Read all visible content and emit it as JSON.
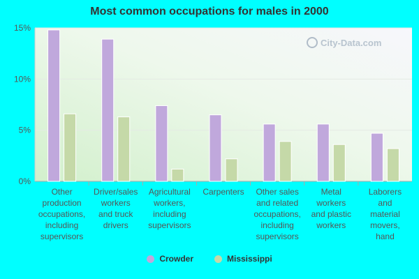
{
  "title": "Most common occupations for males in 2000",
  "watermark": "City-Data.com",
  "chart_data": {
    "type": "bar",
    "title": "Most common occupations for males in 2000",
    "categories": [
      "Other production occupations, including supervisors",
      "Driver/sales workers and truck drivers",
      "Agricultural workers, including supervisors",
      "Carpenters",
      "Other sales and related occupations, including supervisors",
      "Metal workers and plastic workers",
      "Laborers and material movers, hand"
    ],
    "category_label_lines": [
      [
        "Other",
        "production",
        "occupations,",
        "including",
        "supervisors"
      ],
      [
        "Driver/sales",
        "workers",
        "and truck",
        "drivers"
      ],
      [
        "Agricultural",
        "workers,",
        "including",
        "supervisors"
      ],
      [
        "Carpenters"
      ],
      [
        "Other sales",
        "and related",
        "occupations,",
        "including",
        "supervisors"
      ],
      [
        "Metal",
        "workers",
        "and plastic",
        "workers"
      ],
      [
        "Laborers",
        "and",
        "material",
        "movers,",
        "hand"
      ]
    ],
    "series": [
      {
        "name": "Crowder",
        "values": [
          14.8,
          13.9,
          7.4,
          6.5,
          5.6,
          5.6,
          4.7
        ],
        "color": "#c0a8dc"
      },
      {
        "name": "Mississippi",
        "values": [
          6.6,
          6.3,
          1.2,
          2.2,
          3.9,
          3.6,
          3.2
        ],
        "color": "#c5d9a8"
      }
    ],
    "ylim": [
      0,
      15
    ],
    "yticks": [
      0,
      5,
      10,
      15
    ],
    "ytick_labels": [
      "0%",
      "5%",
      "10%",
      "15%"
    ],
    "grid": true,
    "legend_position": "bottom"
  }
}
